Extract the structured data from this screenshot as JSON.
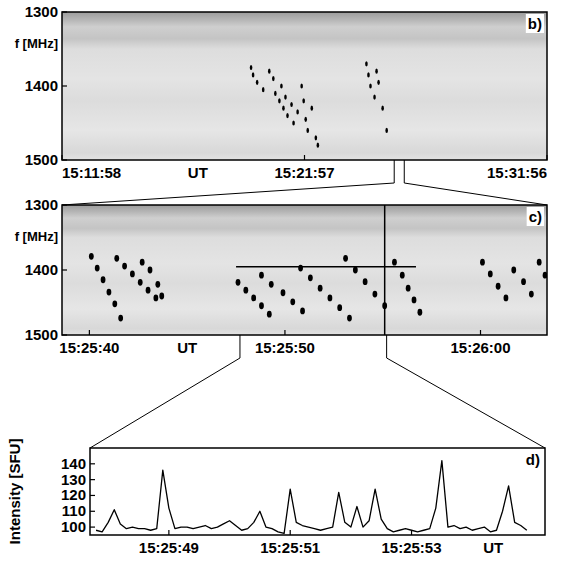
{
  "chart_data": [
    {
      "type": "scatter",
      "panel_label": "b)",
      "x_label": "UT",
      "y_label": "f [MHz]",
      "xlim": [
        54718,
        55916
      ],
      "xticks": [
        {
          "value": 54718,
          "label": "15:11:58"
        },
        {
          "value": 55317,
          "label": "15:21:57"
        },
        {
          "value": 55916,
          "label": "15:31:56"
        }
      ],
      "ylim": [
        1500,
        1300
      ],
      "yticks": [
        1300,
        1400,
        1500
      ],
      "color": "#000000",
      "marker": "ellipse",
      "x": [
        55185,
        55190,
        55200,
        55215,
        55230,
        55240,
        55245,
        55255,
        55260,
        55265,
        55270,
        55275,
        55285,
        55290,
        55300,
        55310,
        55315,
        55320,
        55325,
        55335,
        55345,
        55350,
        55470,
        55475,
        55480,
        55490,
        55495,
        55500,
        55510,
        55520
      ],
      "values": [
        1375,
        1385,
        1395,
        1405,
        1380,
        1390,
        1410,
        1420,
        1400,
        1430,
        1415,
        1440,
        1425,
        1450,
        1435,
        1400,
        1420,
        1445,
        1460,
        1430,
        1470,
        1480,
        1370,
        1385,
        1400,
        1415,
        1380,
        1395,
        1430,
        1460
      ]
    },
    {
      "type": "scatter",
      "panel_label": "c)",
      "x_label": "UT",
      "y_label": "f [MHz]",
      "xlim": [
        55538.6,
        55563.4
      ],
      "xticks": [
        {
          "value": 55540,
          "label": "15:25:40"
        },
        {
          "value": 55550,
          "label": "15:25:50"
        },
        {
          "value": 55560,
          "label": "15:26:00"
        }
      ],
      "ylim": [
        1500,
        1300
      ],
      "yticks": [
        1300,
        1400,
        1500
      ],
      "color": "#000000",
      "marker": "ellipse",
      "cursor": {
        "x": 55555.1,
        "y": 1395,
        "xrange": [
          55547.5,
          55556.7
        ]
      },
      "x": [
        55540.1,
        55540.4,
        55540.7,
        55541.0,
        55541.3,
        55541.6,
        55541.4,
        55541.8,
        55542.2,
        55542.6,
        55543.0,
        55543.4,
        55542.7,
        55543.1,
        55543.5,
        55543.7,
        55547.6,
        55548.0,
        55548.4,
        55548.8,
        55549.2,
        55548.8,
        55549.3,
        55549.9,
        55550.4,
        55550.9,
        55550.8,
        55551.3,
        55551.8,
        55552.3,
        55552.8,
        55553.3,
        55553.1,
        55553.6,
        55554.1,
        55554.6,
        55555.1,
        55555.6,
        55556.0,
        55556.3,
        55556.6,
        55556.9,
        55560.1,
        55560.5,
        55560.9,
        55561.3,
        55561.7,
        55562.2,
        55562.6,
        55563.0,
        55563.3
      ],
      "values": [
        1379,
        1397,
        1415,
        1434,
        1452,
        1474,
        1382,
        1394,
        1406,
        1419,
        1431,
        1443,
        1388,
        1400,
        1422,
        1440,
        1419,
        1431,
        1443,
        1455,
        1468,
        1408,
        1422,
        1435,
        1449,
        1463,
        1397,
        1412,
        1428,
        1443,
        1458,
        1474,
        1382,
        1400,
        1418,
        1437,
        1455,
        1388,
        1408,
        1428,
        1446,
        1465,
        1388,
        1406,
        1425,
        1443,
        1400,
        1418,
        1437,
        1388,
        1408
      ]
    },
    {
      "type": "line",
      "panel_label": "d)",
      "x_label": "UT",
      "y_label": "Intensity [SFU]",
      "xlim": [
        55547.7,
        55555.2
      ],
      "xticks": [
        {
          "value": 55549,
          "label": "15:25:49"
        },
        {
          "value": 55551,
          "label": "15:25:51"
        },
        {
          "value": 55553,
          "label": "15:25:53"
        }
      ],
      "ylim": [
        95,
        150
      ],
      "yticks": [
        100,
        110,
        120,
        130,
        140
      ],
      "color": "#000000",
      "line_style": "solid",
      "x": [
        55547.8,
        55547.9,
        55548.0,
        55548.1,
        55548.2,
        55548.3,
        55548.4,
        55548.5,
        55548.6,
        55548.7,
        55548.8,
        55548.9,
        55549.0,
        55549.1,
        55549.2,
        55549.3,
        55549.4,
        55549.5,
        55549.6,
        55549.7,
        55549.8,
        55549.9,
        55550.0,
        55550.1,
        55550.2,
        55550.3,
        55550.4,
        55550.5,
        55550.6,
        55550.7,
        55550.8,
        55550.9,
        55551.0,
        55551.1,
        55551.2,
        55551.3,
        55551.4,
        55551.5,
        55551.6,
        55551.7,
        55551.8,
        55551.9,
        55552.0,
        55552.1,
        55552.2,
        55552.3,
        55552.4,
        55552.5,
        55552.6,
        55552.7,
        55552.8,
        55552.9,
        55553.0,
        55553.1,
        55553.2,
        55553.3,
        55553.4,
        55553.5,
        55553.6,
        55553.7,
        55553.8,
        55553.9,
        55554.0,
        55554.1,
        55554.2,
        55554.3,
        55554.4,
        55554.5,
        55554.6,
        55554.7,
        55554.8,
        55554.9
      ],
      "values": [
        98,
        97,
        103,
        111,
        102,
        99,
        100,
        99,
        99,
        98,
        99,
        136,
        112,
        99,
        100,
        100,
        99,
        100,
        101,
        99,
        100,
        102,
        104,
        101,
        98,
        99,
        103,
        110,
        100,
        99,
        97,
        96,
        124,
        103,
        101,
        100,
        99,
        98,
        99,
        100,
        122,
        103,
        100,
        113,
        100,
        104,
        124,
        105,
        99,
        97,
        98,
        99,
        98,
        97,
        98,
        99,
        112,
        142,
        100,
        101,
        99,
        100,
        98,
        99,
        100,
        97,
        98,
        110,
        126,
        103,
        101,
        98
      ]
    }
  ]
}
